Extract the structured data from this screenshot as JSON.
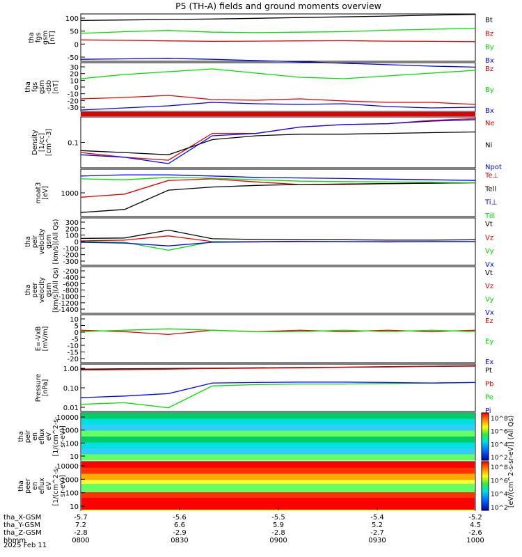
{
  "title": "P5 (TH-A) fields and ground moments overview",
  "colors": {
    "black": "#000000",
    "red": "#e00000",
    "green": "#00dd00",
    "blue": "#0000ff"
  },
  "chart_data": [
    {
      "type": "line",
      "ylabel": [
        "tha",
        "fgs",
        "gsm",
        "[nT]"
      ],
      "yticks": [
        "100",
        "50",
        "0",
        "-50"
      ],
      "series": [
        {
          "name": "Bt",
          "color": "black",
          "y": [
            88,
            90,
            92,
            94,
            97,
            100,
            103,
            106,
            110,
            113
          ]
        },
        {
          "name": "Bz",
          "color": "red",
          "y": [
            8,
            6,
            4,
            2,
            3,
            4,
            5,
            3,
            2,
            1
          ]
        },
        {
          "name": "By",
          "color": "green",
          "y": [
            35,
            42,
            47,
            40,
            38,
            40,
            42,
            48,
            52,
            56
          ]
        },
        {
          "name": "Bx",
          "color": "blue",
          "y": [
            -72,
            -70,
            -68,
            -72,
            -77,
            -82,
            -88,
            -94,
            -100,
            -104
          ]
        }
      ]
    },
    {
      "type": "line",
      "ylabel": [
        "tha",
        "fgs",
        "gsm",
        "-dsb",
        "[nT]"
      ],
      "yticks": [
        "30",
        "20",
        "10",
        "0",
        "-10",
        "-20",
        "-30"
      ],
      "series": [
        {
          "name": "Bz",
          "color": "red",
          "y": [
            -17,
            -15,
            -12,
            -18,
            -19,
            -17,
            -20,
            -22,
            -22,
            -25
          ]
        },
        {
          "name": "By",
          "color": "green",
          "y": [
            12,
            18,
            22,
            26,
            20,
            14,
            12,
            16,
            20,
            24
          ]
        },
        {
          "name": "Bx",
          "color": "blue",
          "y": [
            -33,
            -30,
            -27,
            -22,
            -24,
            -25,
            -24,
            -28,
            -30,
            -29
          ]
        }
      ]
    },
    {
      "type": "line",
      "ylabel": [
        "Density",
        "[1/cc]",
        "[cm^-3]"
      ],
      "yticks": [
        "0.1"
      ],
      "yscale": "log",
      "series": [
        {
          "name": "Ne",
          "color": "red",
          "y": [
            0.09,
            0.07,
            0.06,
            0.25,
            0.25,
            0.35,
            0.4,
            0.42,
            0.5,
            0.55
          ]
        },
        {
          "name": "Ni",
          "color": "black",
          "y": [
            0.1,
            0.09,
            0.08,
            0.18,
            0.22,
            0.24,
            0.24,
            0.25,
            0.26,
            0.27
          ]
        },
        {
          "name": "Npot",
          "color": "blue",
          "y": [
            0.08,
            0.07,
            0.05,
            0.22,
            0.25,
            0.35,
            0.4,
            0.42,
            0.48,
            0.52
          ]
        }
      ]
    },
    {
      "type": "line",
      "ylabel": [
        "moat3",
        "[eV]"
      ],
      "yticks": [
        "1000"
      ],
      "yscale": "log",
      "series": [
        {
          "name": "Te⊥",
          "color": "red",
          "y": [
            1200,
            1500,
            4000,
            4500,
            3600,
            3000,
            3000,
            3200,
            3300,
            3400
          ]
        },
        {
          "name": "Tell",
          "color": "black",
          "y": [
            400,
            500,
            2000,
            2500,
            2800,
            3000,
            3100,
            3200,
            3300,
            3400
          ]
        },
        {
          "name": "Ti⊥",
          "color": "blue",
          "y": [
            5500,
            6000,
            6000,
            5500,
            5000,
            4800,
            4600,
            4400,
            4200,
            4000
          ]
        },
        {
          "name": "Till",
          "color": "green",
          "y": [
            4500,
            4200,
            5000,
            4700,
            4200,
            3800,
            3700,
            3600,
            3500,
            3400
          ]
        }
      ]
    },
    {
      "type": "line",
      "ylabel": [
        "tha",
        "peir",
        "velocity",
        "gsm",
        "[km/s](All Qs)"
      ],
      "yticks": [
        "300",
        "200",
        "100",
        "0",
        "-100",
        "-200",
        "-300"
      ],
      "series": [
        {
          "name": "Vt",
          "color": "black",
          "y": [
            45,
            50,
            160,
            40,
            30,
            25,
            25,
            20,
            20,
            25
          ]
        },
        {
          "name": "Vz",
          "color": "red",
          "y": [
            10,
            20,
            80,
            0,
            0,
            5,
            0,
            0,
            0,
            0
          ]
        },
        {
          "name": "Vy",
          "color": "green",
          "y": [
            0,
            -10,
            -120,
            0,
            -5,
            0,
            0,
            -5,
            0,
            0
          ]
        },
        {
          "name": "Vx",
          "color": "blue",
          "y": [
            -10,
            -20,
            -60,
            -10,
            -5,
            0,
            0,
            -5,
            0,
            0
          ]
        }
      ]
    },
    {
      "type": "line",
      "ylabel": [
        "tha",
        "peer",
        "velocity",
        "gsm",
        "[km/s](All Qs)"
      ],
      "yticks": [
        "-200",
        "-400",
        "-600",
        "-800",
        "-1000",
        "-1200",
        "-1400"
      ],
      "series": [
        {
          "name": "Vt",
          "color": "black",
          "y": []
        },
        {
          "name": "Vz",
          "color": "red",
          "y": []
        },
        {
          "name": "Vy",
          "color": "green",
          "y": []
        },
        {
          "name": "Vx",
          "color": "blue",
          "y": []
        }
      ]
    },
    {
      "type": "line",
      "ylabel": [
        "E=-VxB",
        "[mV/m]"
      ],
      "yticks": [
        "10",
        "5",
        "0",
        "-5",
        "-10",
        "-15",
        "-20"
      ],
      "series": [
        {
          "name": "Ez",
          "color": "red",
          "y": [
            1,
            0,
            -2,
            1,
            0,
            1,
            0,
            1,
            0,
            1
          ]
        },
        {
          "name": "Ey",
          "color": "green",
          "y": [
            0,
            1,
            2,
            1,
            0,
            0,
            1,
            0,
            1,
            0
          ]
        },
        {
          "name": "Ex",
          "color": "blue",
          "y": []
        }
      ]
    },
    {
      "type": "line",
      "ylabel": [
        "Pressure",
        "[nPa]"
      ],
      "yticks": [
        "1.00",
        "0.10",
        "0.01"
      ],
      "yscale": "log",
      "series": [
        {
          "name": "Pt",
          "color": "black",
          "y": [
            1.0,
            1.05,
            1.1,
            1.15,
            1.2,
            1.25,
            1.3,
            1.4,
            1.5,
            1.6
          ]
        },
        {
          "name": "Pb",
          "color": "red",
          "y": [
            0.9,
            0.95,
            1.0,
            1.1,
            1.15,
            1.2,
            1.3,
            1.35,
            1.45,
            1.5
          ]
        },
        {
          "name": "Pe",
          "color": "green",
          "y": [
            0.008,
            0.01,
            0.005,
            0.1,
            0.12,
            0.13,
            0.13,
            0.14,
            0.15,
            0.16
          ]
        },
        {
          "name": "Pi",
          "color": "blue",
          "y": [
            0.02,
            0.025,
            0.035,
            0.15,
            0.16,
            0.17,
            0.17,
            0.16,
            0.15,
            0.16
          ]
        }
      ]
    },
    {
      "type": "heatmap",
      "ylabel": [
        "tha",
        "peir",
        "en",
        "eflux",
        "eV",
        "[1/(cm^2-s-",
        "sr-eV)]"
      ],
      "yticks": [
        "10000",
        "1000",
        "100",
        "10"
      ],
      "yscale": "log"
    },
    {
      "type": "heatmap",
      "ylabel": [
        "tha",
        "peer",
        "en",
        "eflux",
        "eV",
        "[1/(cm^2-s-",
        "sr-eV)]"
      ],
      "yticks": [
        "10000",
        "1000",
        "100",
        "10"
      ],
      "yscale": "log"
    }
  ],
  "colorbar": {
    "label": "[eV/(cm^2-s-sr-eV)] (All Qs)",
    "ticks_upper": [
      "10^8",
      "10^6",
      "10^4",
      "10^2"
    ],
    "ticks_lower": [
      "10^8",
      "10^6",
      "10^4",
      "10^2"
    ]
  },
  "xaxis": {
    "rows": [
      {
        "label": "tha_X-GSM",
        "values": [
          "-5.7",
          "-5.6",
          "-5.5",
          "-5.4",
          "-5.2"
        ]
      },
      {
        "label": "tha_Y-GSM",
        "values": [
          "7.2",
          "6.6",
          "5.9",
          "5.2",
          "4.5"
        ]
      },
      {
        "label": "tha_Z-GSM",
        "values": [
          "-2.8",
          "-2.9",
          "-2.8",
          "-2.7",
          "-2.6"
        ]
      },
      {
        "label": "hhmm",
        "values": [
          "0800",
          "0830",
          "0900",
          "0930",
          "1000"
        ]
      }
    ],
    "date": "2025 Feb 11"
  }
}
